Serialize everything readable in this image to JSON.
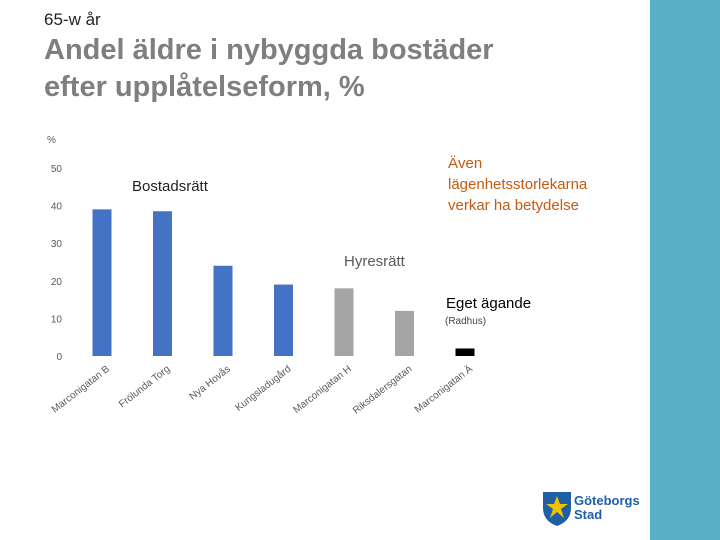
{
  "header": {
    "kicker": "65-w år",
    "title_line1": "Andel äldre i nybyggda bostäder",
    "title_line2": "efter upplåtelseform, %"
  },
  "chart_data": {
    "type": "bar",
    "ylabel": "%",
    "ylim": [
      0,
      50
    ],
    "yticks": [
      0,
      10,
      20,
      30,
      40,
      50
    ],
    "categories": [
      "Marconigatan B",
      "Frölunda Torg",
      "Nya Hovås",
      "Kungsladugård",
      "Marconigatan H",
      "Riksdalersgatan",
      "Marconigatan Ä"
    ],
    "values": [
      39,
      38.5,
      24,
      19,
      18,
      12,
      2
    ],
    "bar_colors": [
      "#4472c4",
      "#4472c4",
      "#4472c4",
      "#4472c4",
      "#a5a5a5",
      "#a5a5a5",
      "#000000"
    ],
    "grid": false,
    "annotations": {
      "bostadsratt": "Bostadsrätt",
      "hyresratt": "Hyresrätt",
      "eget_agande": "Eget ägande",
      "radhus": "(Radhus)",
      "note_line1": "Även",
      "note_line2": "lägenhetsstorlekarna",
      "note_line3": "verkar ha betydelse"
    }
  },
  "logo": {
    "line1": "Göteborgs",
    "line2": "Stad",
    "colors": [
      "#1f5fa6",
      "#f2c200"
    ]
  }
}
